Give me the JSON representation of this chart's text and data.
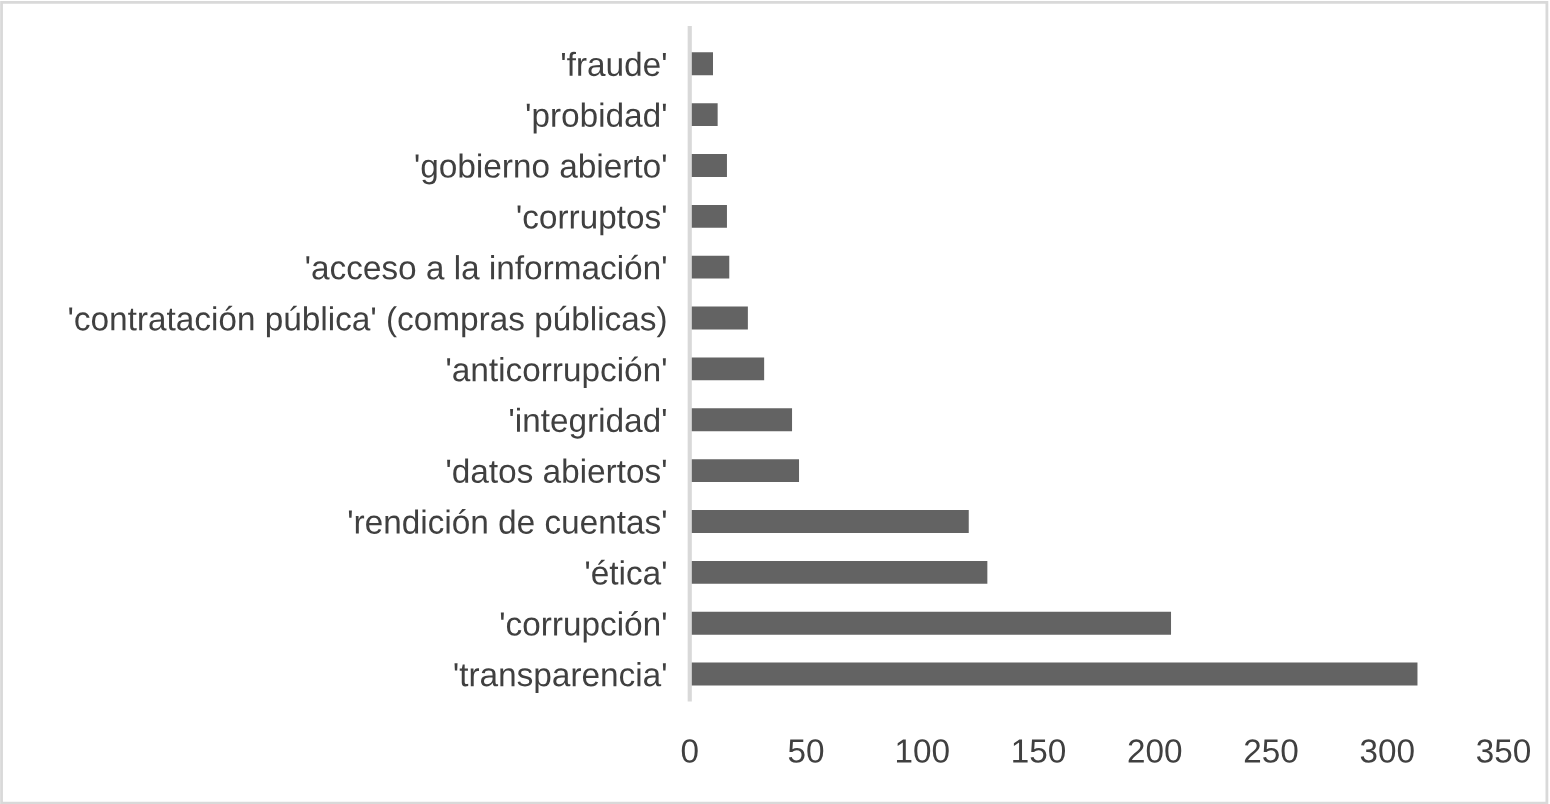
{
  "chart_data": {
    "type": "bar",
    "orientation": "horizontal",
    "categories": [
      "'fraude'",
      "'probidad'",
      "'gobierno abierto'",
      "'corruptos'",
      "'acceso a la información'",
      "'contratación pública' (compras públicas)",
      "'anticorrupción'",
      "'integridad'",
      "'datos abiertos'",
      "'rendición de cuentas'",
      "'ética'",
      "'corrupción'",
      "'transparencia'"
    ],
    "values": [
      10,
      12,
      16,
      16,
      17,
      25,
      32,
      44,
      47,
      120,
      128,
      207,
      313
    ],
    "color": "#636363",
    "xlim": [
      0,
      350
    ],
    "xticks": [
      0,
      50,
      100,
      150,
      200,
      250,
      300,
      350
    ],
    "grid": false,
    "legend": false
  }
}
